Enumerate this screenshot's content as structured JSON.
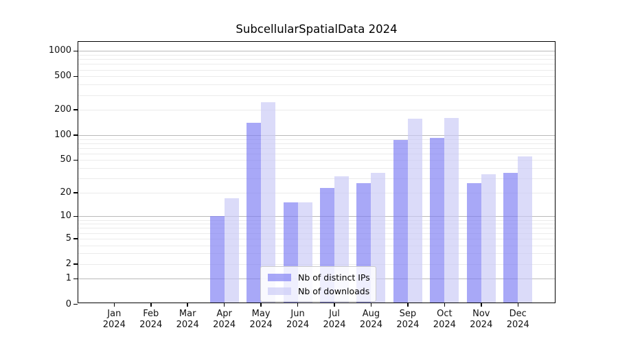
{
  "chart_data": {
    "type": "bar",
    "title": "SubcellularSpatialData 2024",
    "x_tick_months": [
      "Jan",
      "Feb",
      "Mar",
      "Apr",
      "May",
      "Jun",
      "Jul",
      "Aug",
      "Sep",
      "Oct",
      "Nov",
      "Dec"
    ],
    "x_tick_year": "2024",
    "series": [
      {
        "name": "Nb of distinct IPs",
        "color": "rgba(122,122,242,0.65)",
        "values": [
          0,
          0,
          0,
          10,
          141,
          15,
          23,
          26,
          87,
          93,
          26,
          35
        ]
      },
      {
        "name": "Nb of downloads",
        "color": "rgba(200,200,246,0.65)",
        "values": [
          0,
          0,
          0,
          17,
          246,
          15,
          32,
          35,
          157,
          161,
          34,
          55
        ]
      }
    ],
    "y_ticks": [
      0,
      1,
      2,
      5,
      10,
      20,
      50,
      100,
      200,
      500,
      1000
    ],
    "y_scale": "log10(1+y)",
    "ylim": [
      0,
      1260
    ],
    "grid": true,
    "legend_position": "lower-center",
    "colors": {
      "distinct_ips_hex": "#a9a9f6",
      "downloads_hex": "#dbdbf9"
    }
  }
}
